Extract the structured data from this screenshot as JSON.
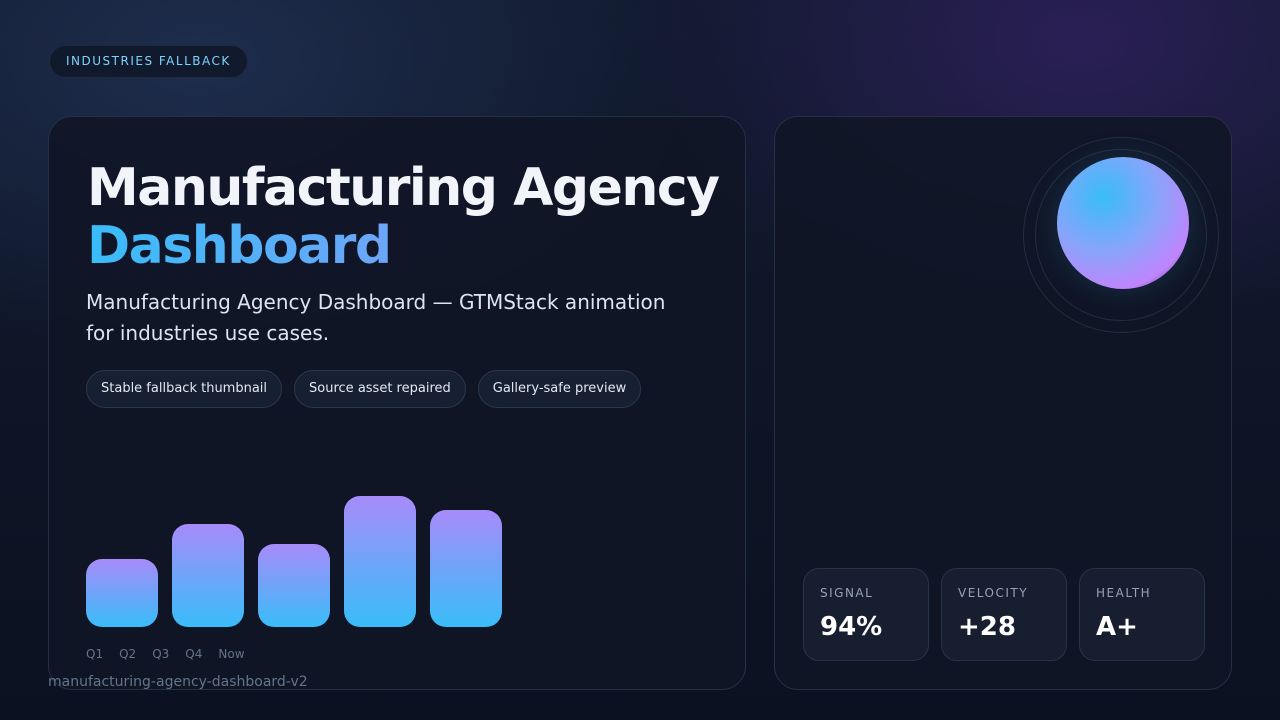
{
  "badge": "INDUSTRIES FALLBACK",
  "hero": {
    "title_line1": "Manufacturing Agency",
    "title_line2": "Dashboard",
    "description": "Manufacturing Agency Dashboard — GTMStack animation for industries use cases.",
    "chips": [
      "Stable fallback thumbnail",
      "Source asset repaired",
      "Gallery-safe preview"
    ]
  },
  "chart_data": {
    "type": "bar",
    "categories": [
      "Q1",
      "Q2",
      "Q3",
      "Q4",
      "Now"
    ],
    "tick_labels": [
      "Q1",
      "Q2",
      "Q3",
      "Q4",
      "Now"
    ],
    "values": [
      52,
      79,
      63,
      100,
      89
    ],
    "ylim": [
      0,
      100
    ],
    "grid": false,
    "colors": {
      "top": "#a78bfa",
      "bottom": "#38bdf8"
    }
  },
  "stats": [
    {
      "label": "SIGNAL",
      "value": "94%"
    },
    {
      "label": "VELOCITY",
      "value": "+28"
    },
    {
      "label": "HEALTH",
      "value": "A+"
    }
  ],
  "footer": "manufacturing-agency-dashboard-v2",
  "colors": {
    "accent_blue": "#38bdf8",
    "accent_purple": "#a78bfa",
    "background": "#0b1120"
  }
}
